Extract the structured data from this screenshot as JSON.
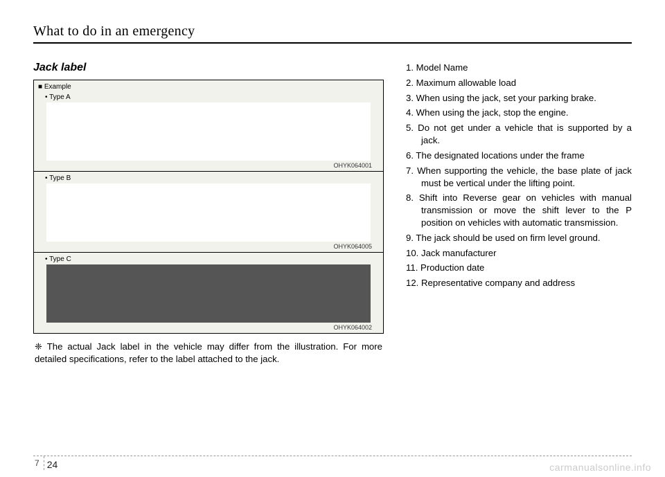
{
  "header": {
    "title": "What to do in an emergency"
  },
  "section": {
    "title": "Jack label"
  },
  "example": {
    "label": "■ Example",
    "types": [
      {
        "label": "Type A",
        "code": "OHYK064001",
        "dark": false
      },
      {
        "label": "Type B",
        "code": "OHYK064005",
        "dark": false
      },
      {
        "label": "Type C",
        "code": "OHYK064002",
        "dark": true
      }
    ]
  },
  "footnote": "❈ The actual Jack label in the vehicle may differ from the illustration. For more detailed specifications, refer to the label attached to the jack.",
  "list": [
    "1. Model Name",
    "2. Maximum allowable load",
    "3. When using the jack, set your parking brake.",
    "4. When using the jack, stop the engine.",
    "5. Do not get under a vehicle that is supported by a jack.",
    "6. The designated locations under the frame",
    "7. When supporting the vehicle, the base plate of jack must be vertical under the lifting point.",
    "8. Shift into Reverse gear on vehicles with manual transmission or move the shift lever to the P position on vehicles with automatic transmission.",
    "9. The jack should be used on firm level ground.",
    "10. Jack manufacturer",
    "11. Production date",
    "12. Representative company and address"
  ],
  "footer": {
    "section_num": "7",
    "page_num": "24"
  },
  "watermark": "carmanualsonline.info"
}
